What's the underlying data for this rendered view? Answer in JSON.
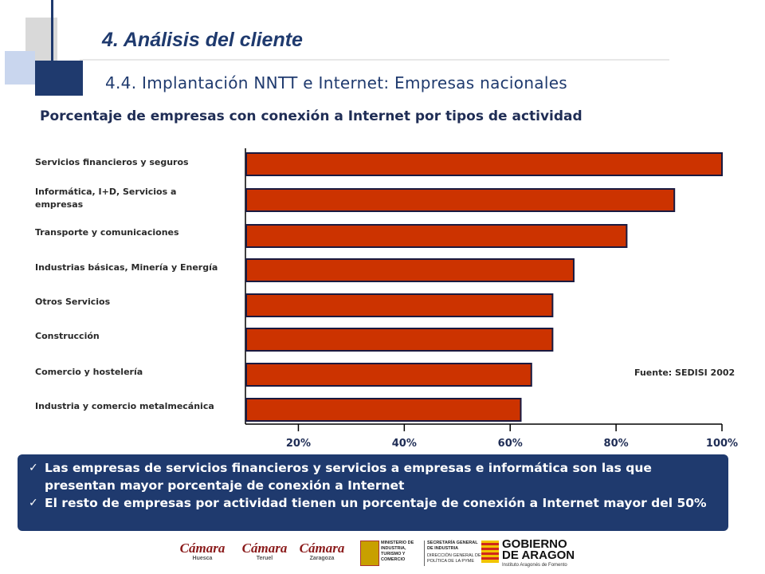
{
  "header": {
    "title": "4. Análisis del cliente",
    "subtitle": "4.4. Implantación NNTT e Internet: Empresas nacionales"
  },
  "chart_data": {
    "type": "bar",
    "orientation": "horizontal",
    "title": "Porcentaje de empresas con conexión a Internet por tipos de actividad",
    "categories": [
      "Servicios financieros  y seguros",
      "Informática, I+D, Servicios a empresas",
      "Transporte y comunicaciones",
      "Industrias básicas, Minería y Energía",
      "Otros Servicios",
      "Construcción",
      "Comercio y hostelería",
      "Industria y comercio metalmecánica"
    ],
    "values": [
      100,
      91,
      82,
      72,
      68,
      68,
      64,
      62
    ],
    "xlim": [
      10,
      100
    ],
    "x_ticks": [
      20,
      40,
      60,
      80,
      100
    ],
    "x_tick_labels": [
      "20%",
      "40%",
      "60%",
      "80%",
      "100%"
    ],
    "bar_color": "#cc3300",
    "grid": false,
    "annotation": "Fuente: SEDISI 2002"
  },
  "notes": [
    "Las empresas de servicios financieros y servicios a empresas e informática son las que presentan mayor porcentaje de conexión a Internet",
    "El resto de empresas por actividad tienen un porcentaje de conexión a Internet mayor del 50%"
  ],
  "logos": {
    "camara": "Cámara",
    "huesca": "Huesca",
    "teruel": "Teruel",
    "zaragoza": "Zaragoza",
    "ministerio": "MINISTERIO DE INDUSTRIA, TURISMO Y COMERCIO",
    "secretaria": "SECRETARÍA GENERAL DE INDUSTRIA",
    "direccion": "DIRECCIÓN GENERAL DE POLÍTICA DE LA PYME",
    "gobierno_1": "GOBIERNO",
    "gobierno_2": "DE ARAGON",
    "instituto": "Instituto Aragonés de Fomento"
  },
  "colors": {
    "title": "#1f3a6e",
    "notes_bg": "#1f3a6e",
    "bar": "#cc3300"
  }
}
